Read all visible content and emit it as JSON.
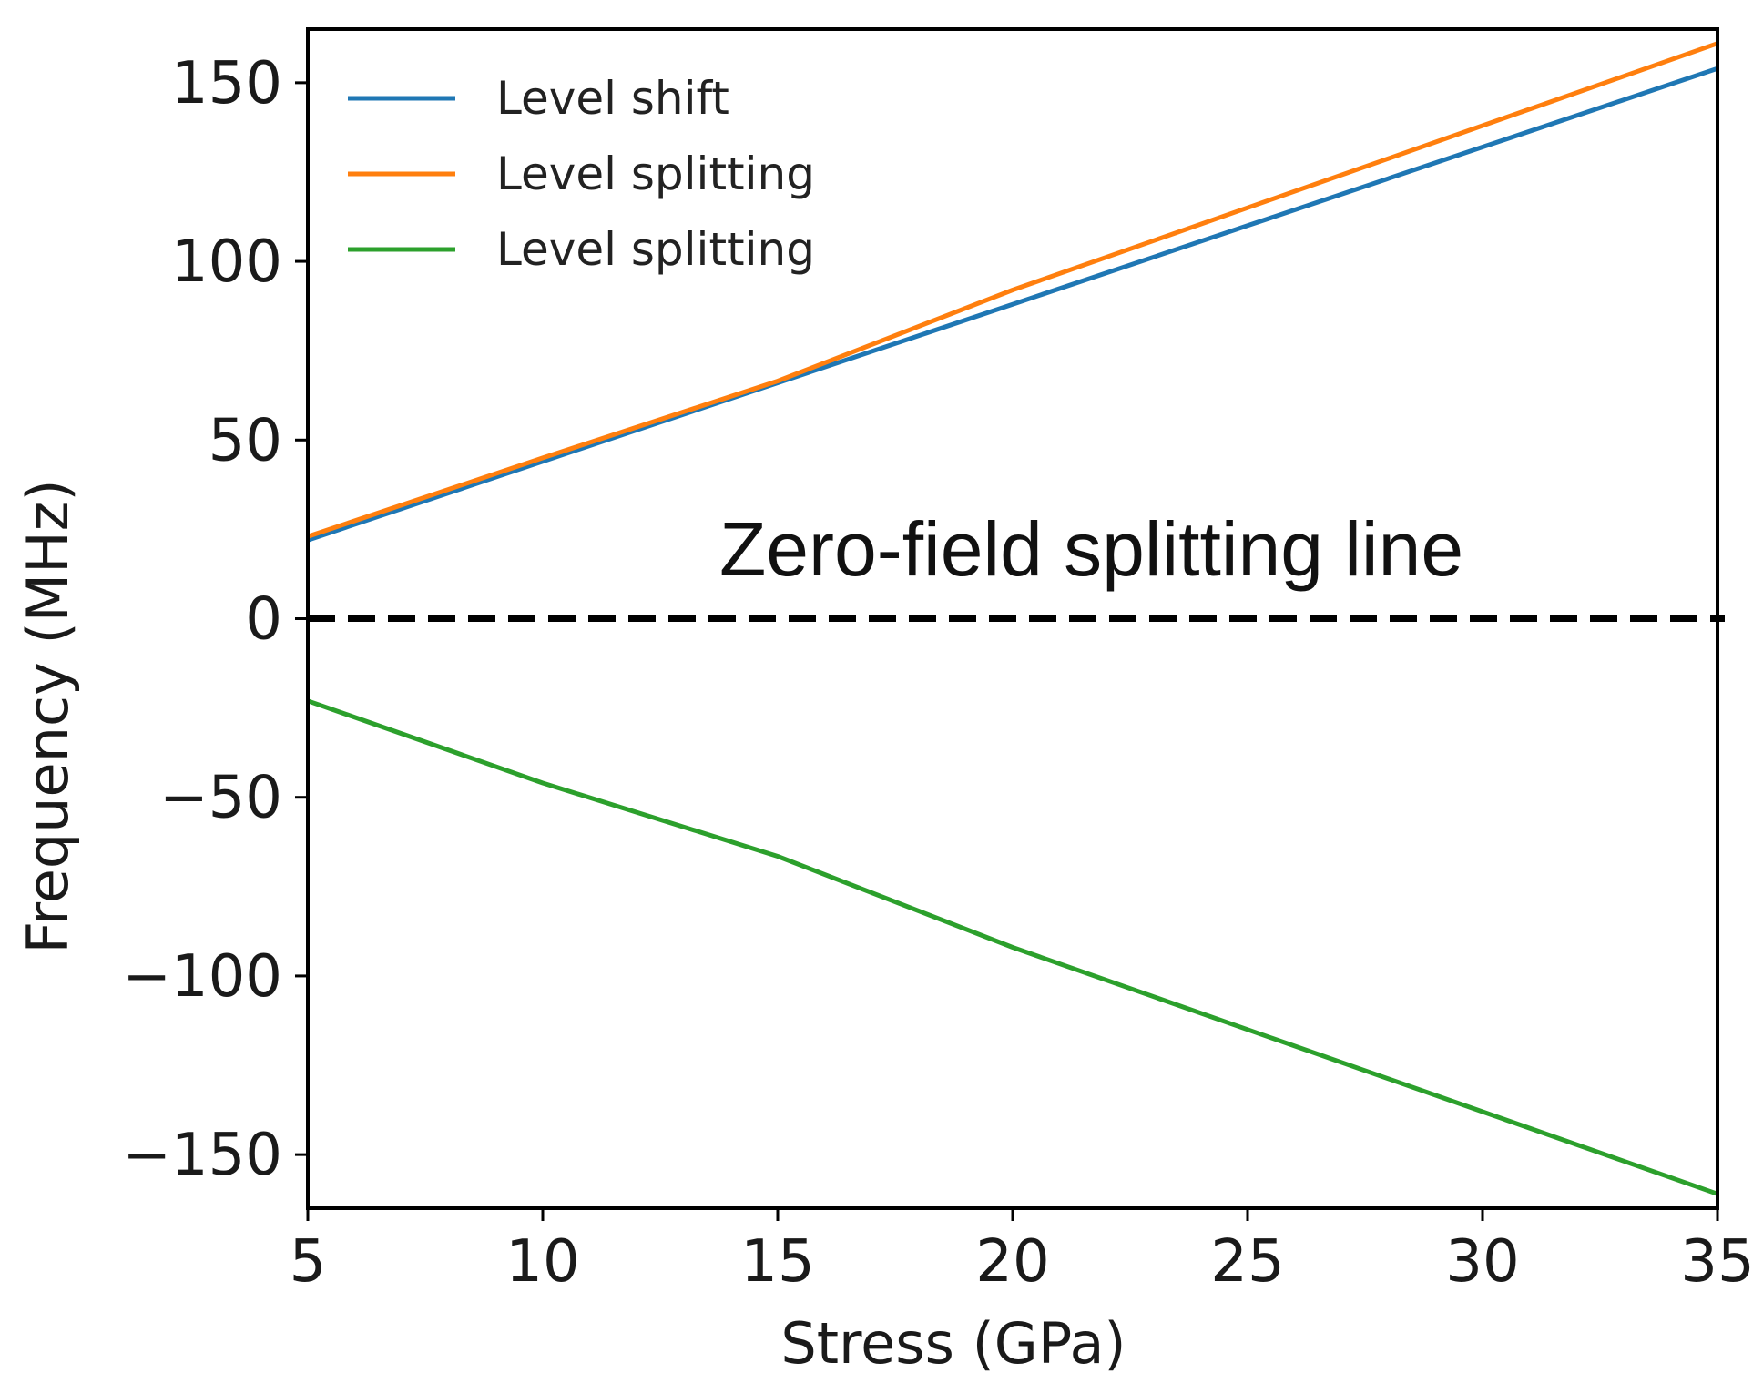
{
  "chart_data": {
    "type": "line",
    "title": "",
    "xlabel": "Stress (GPa)",
    "ylabel": "Frequency (MHz)",
    "xlim": [
      5,
      35
    ],
    "ylim": [
      -165,
      165
    ],
    "xticks": [
      5,
      10,
      15,
      20,
      25,
      30,
      35
    ],
    "xtick_labels": [
      "5",
      "10",
      "15",
      "20",
      "25",
      "30",
      "35"
    ],
    "yticks": [
      150,
      100,
      50,
      0,
      -50,
      -100,
      -150
    ],
    "ytick_labels": [
      "150",
      "100",
      "50",
      "0",
      "−50",
      "−100",
      "−150"
    ],
    "grid": false,
    "legend_position": "top-left",
    "series": [
      {
        "name": "Level shift",
        "color": "#1f77b4",
        "x": [
          5,
          10,
          15,
          20,
          25,
          30,
          35
        ],
        "y": [
          22,
          44,
          66,
          88,
          110,
          132,
          154
        ]
      },
      {
        "name": "Level splitting",
        "color": "#ff7f0e",
        "x": [
          5,
          10,
          15,
          20,
          25,
          30,
          35
        ],
        "y": [
          23,
          45,
          66.5,
          92,
          115,
          138,
          161
        ]
      },
      {
        "name": "Level splitting",
        "color": "#2ca02c",
        "x": [
          5,
          10,
          15,
          20,
          25,
          30,
          35
        ],
        "y": [
          -23,
          -46,
          -66.5,
          -92,
          -115,
          -138,
          -161
        ]
      }
    ],
    "reference_line": {
      "y": 0,
      "style": "dashed",
      "color": "#000000",
      "label": "Zero-field splitting line"
    }
  }
}
